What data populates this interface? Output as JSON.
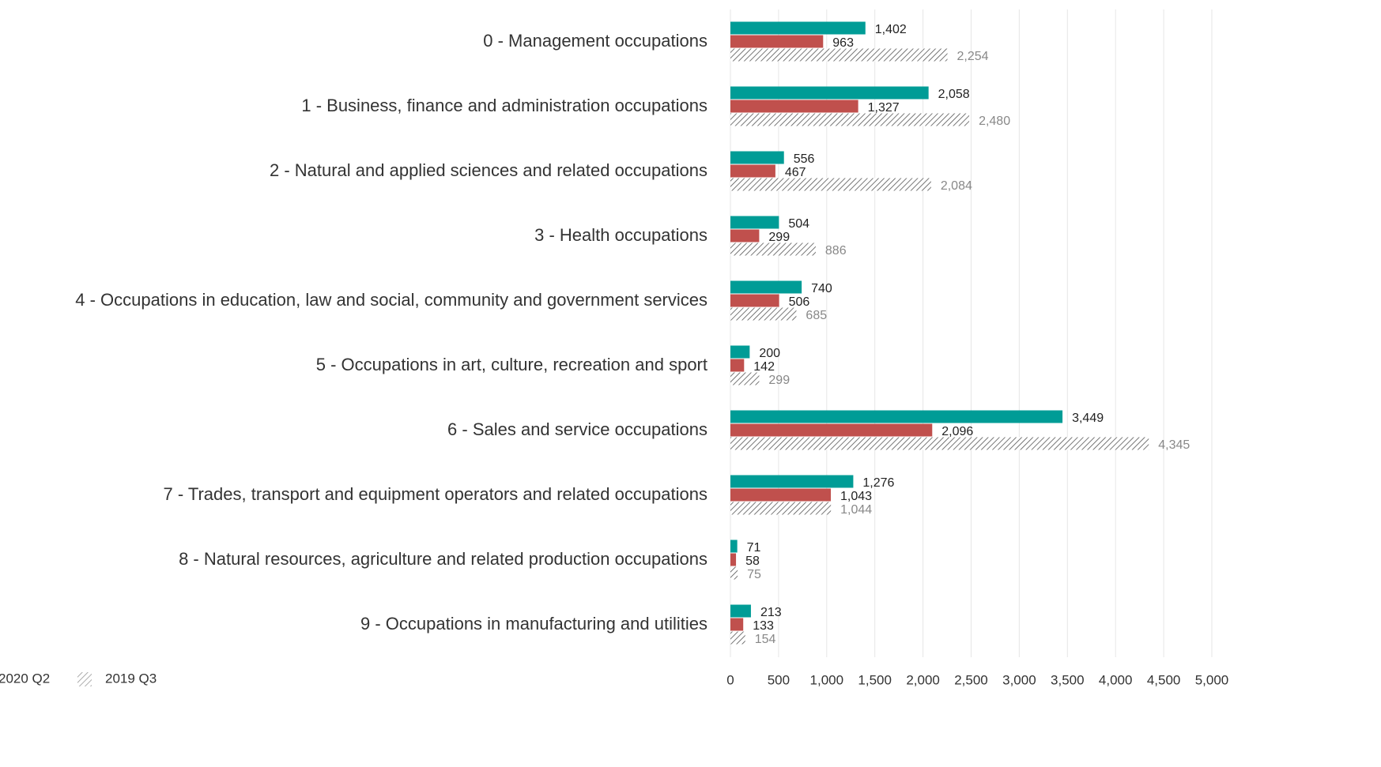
{
  "chart_data": {
    "type": "bar",
    "orientation": "horizontal",
    "categories": [
      "0 - Management occupations",
      "1 - Business, finance and administration occupations",
      "2 - Natural and applied sciences and related occupations",
      "3 - Health occupations",
      "4 - Occupations in education, law and social, community and government services",
      "5 - Occupations in art, culture, recreation and sport",
      "6 - Sales and service occupations",
      "7 - Trades, transport and equipment operators and related occupations",
      "8 - Natural resources, agriculture and related production occupations",
      "9 - Occupations in manufacturing and utilities"
    ],
    "series": [
      {
        "color": "#009c96",
        "values": [
          1402,
          2058,
          556,
          504,
          740,
          200,
          3449,
          1276,
          71,
          213
        ],
        "value_labels": [
          "1,402",
          "2,058",
          "556",
          "504",
          "740",
          "200",
          "3,449",
          "1,276",
          "71",
          "213"
        ]
      },
      {
        "name": "2020 Q2",
        "color": "#c0504d",
        "values": [
          963,
          1327,
          467,
          299,
          506,
          142,
          2096,
          1043,
          58,
          133
        ],
        "value_labels": [
          "963",
          "1,327",
          "467",
          "299",
          "506",
          "142",
          "2,096",
          "1,043",
          "58",
          "133"
        ]
      },
      {
        "name": "2019 Q3",
        "color": "#555555",
        "hatched": true,
        "values": [
          2254,
          2480,
          2084,
          886,
          685,
          299,
          4345,
          1044,
          75,
          154
        ],
        "value_labels": [
          "2,254",
          "2,480",
          "2,084",
          "886",
          "685",
          "299",
          "4,345",
          "1,044",
          "75",
          "154"
        ]
      }
    ],
    "xlim": [
      0,
      5000
    ],
    "xticks": [
      0,
      500,
      {
        "value": 1000,
        "label": "1,000"
      },
      {
        "value": 1500,
        "label": "1,500"
      },
      {
        "value": 2000,
        "label": "2,000"
      },
      {
        "value": 2500,
        "label": "2,500"
      },
      {
        "value": 3000,
        "label": "3,000"
      },
      {
        "value": 3500,
        "label": "3,500"
      },
      {
        "value": 4000,
        "label": "4,000"
      },
      {
        "value": 4500,
        "label": "4,500"
      },
      {
        "value": 5000,
        "label": "5,000"
      }
    ],
    "grid": true,
    "legend": "bottom-left"
  }
}
